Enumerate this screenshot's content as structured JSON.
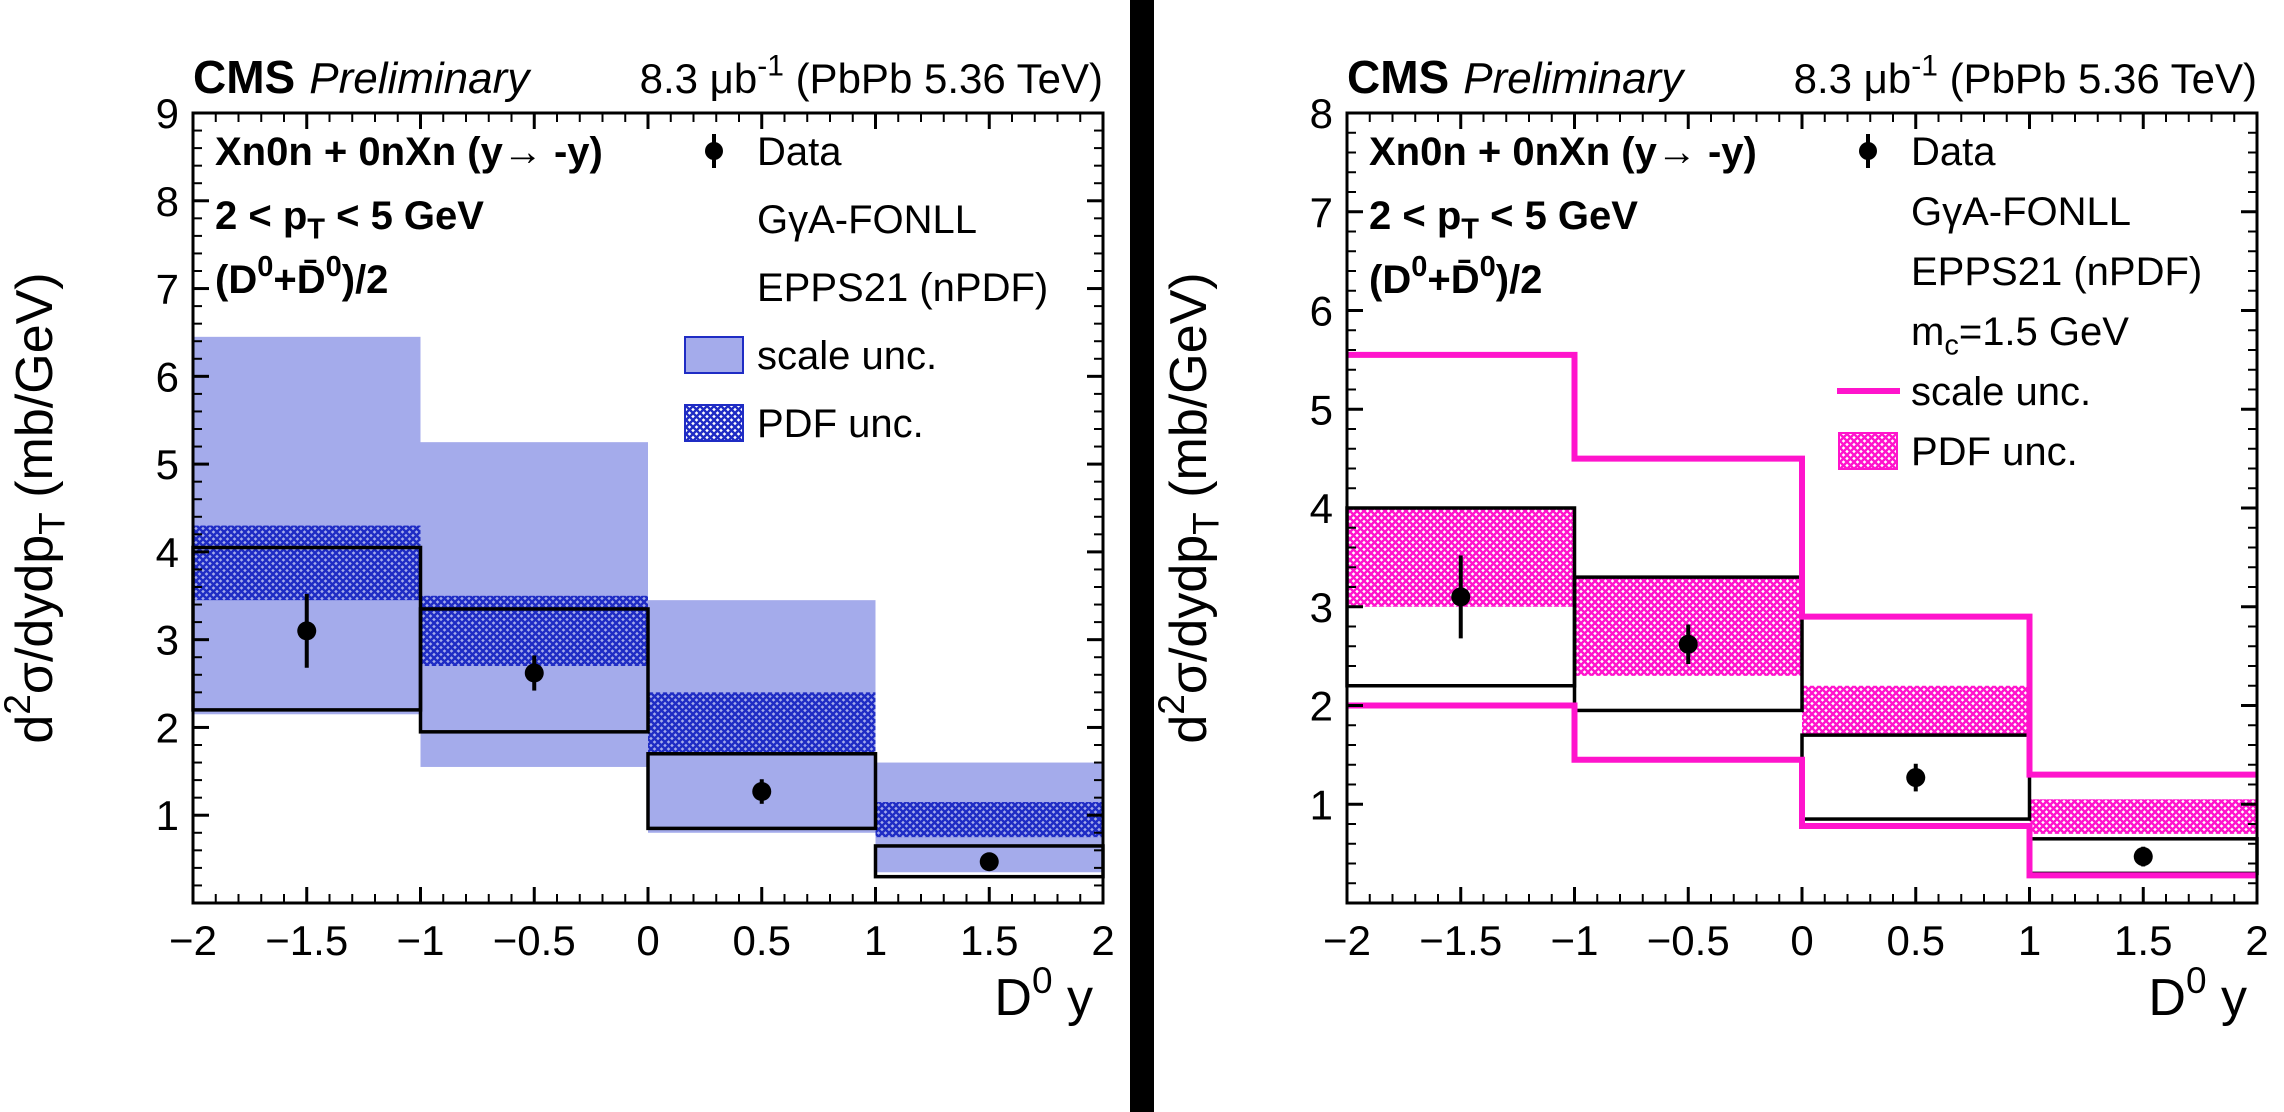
{
  "figure": {
    "background": "#ffffff",
    "separator_color": "#000000"
  },
  "chart_data": [
    {
      "type": "bar",
      "variant": "hep-cross-section-uncertainty-bands",
      "header": {
        "experiment": "CMS",
        "status": "Preliminary",
        "lumi": "8.3 μb^{-1} (PbPb 5.36 TeV)"
      },
      "annotations": [
        "Xn0n + 0nXn (y→ -y)",
        "2 < p_{T} < 5 GeV",
        "(D^{0}+D̄^{0})/2"
      ],
      "xlabel": "D^{0} y",
      "ylabel": "d^{2}σ/dydp_{T} (mb/GeV)",
      "xlim": [
        -2,
        2
      ],
      "ylim": [
        0,
        9
      ],
      "xticks": [
        -2,
        -1.5,
        -1,
        -0.5,
        0,
        0.5,
        1,
        1.5,
        2
      ],
      "yticks": [
        1,
        2,
        3,
        4,
        5,
        6,
        7,
        8,
        9
      ],
      "bin_edges": [
        -2,
        -1,
        0,
        1,
        2
      ],
      "series": [
        {
          "name": "scale unc.",
          "style": "band_fill",
          "color": "#a4abeb",
          "bins": [
            [
              2.15,
              6.45
            ],
            [
              1.55,
              5.25
            ],
            [
              0.8,
              3.45
            ],
            [
              0.35,
              1.6
            ]
          ]
        },
        {
          "name": "PDF unc.",
          "style": "band_hatch",
          "color": "#1f2cc4",
          "bins": [
            [
              3.45,
              4.3
            ],
            [
              2.7,
              3.5
            ],
            [
              1.7,
              2.4
            ],
            [
              0.75,
              1.15
            ]
          ]
        },
        {
          "name": "GγA-FONLL central",
          "style": "box_outline",
          "color": "#000000",
          "bins": [
            [
              2.2,
              4.05
            ],
            [
              1.95,
              3.35
            ],
            [
              0.85,
              1.7
            ],
            [
              0.3,
              0.65
            ]
          ]
        },
        {
          "name": "Data",
          "style": "points",
          "color": "#000000",
          "x": [
            -1.5,
            -0.5,
            0.5,
            1.5
          ],
          "y": [
            3.1,
            2.62,
            1.27,
            0.47
          ],
          "yerr": [
            0.42,
            0.2,
            0.14,
            0.1
          ]
        }
      ],
      "legend": [
        {
          "label": "Data",
          "marker": "point"
        },
        {
          "label": "GγA-FONLL",
          "marker": "none"
        },
        {
          "label": "EPPS21 (nPDF)",
          "marker": "none"
        },
        {
          "label": "scale unc.",
          "marker": "fill",
          "color": "#a4abeb",
          "border": "#1f2cc4"
        },
        {
          "label": "PDF unc.",
          "marker": "hatch",
          "color": "#1f2cc4"
        }
      ]
    },
    {
      "type": "bar",
      "variant": "hep-cross-section-uncertainty-bands",
      "header": {
        "experiment": "CMS",
        "status": "Preliminary",
        "lumi": "8.3 μb^{-1} (PbPb 5.36 TeV)"
      },
      "annotations": [
        "Xn0n + 0nXn (y→ -y)",
        "2 < p_{T} < 5 GeV",
        "(D^{0}+D̄^{0})/2"
      ],
      "xlabel": "D^{0} y",
      "ylabel": "d^{2}σ/dydp_{T} (mb/GeV)",
      "xlim": [
        -2,
        2
      ],
      "ylim": [
        0,
        8
      ],
      "xticks": [
        -2,
        -1.5,
        -1,
        -0.5,
        0,
        0.5,
        1,
        1.5,
        2
      ],
      "yticks": [
        1,
        2,
        3,
        4,
        5,
        6,
        7,
        8
      ],
      "bin_edges": [
        -2,
        -1,
        0,
        1,
        2
      ],
      "series": [
        {
          "name": "PDF unc.",
          "style": "band_hatch",
          "color": "#ff14cc",
          "bins": [
            [
              3.0,
              4.0
            ],
            [
              2.3,
              3.3
            ],
            [
              1.7,
              2.2
            ],
            [
              0.7,
              1.05
            ]
          ]
        },
        {
          "name": "GγA-FONLL central",
          "style": "box_outline",
          "color": "#000000",
          "bins": [
            [
              2.2,
              4.0
            ],
            [
              1.95,
              3.3
            ],
            [
              0.85,
              1.7
            ],
            [
              0.3,
              0.65
            ]
          ]
        },
        {
          "name": "scale unc.",
          "style": "band_outline",
          "color": "#ff14cc",
          "bins": [
            [
              2.0,
              5.55
            ],
            [
              1.45,
              4.5
            ],
            [
              0.78,
              2.9
            ],
            [
              0.28,
              1.3
            ]
          ]
        },
        {
          "name": "Data",
          "style": "points",
          "color": "#000000",
          "x": [
            -1.5,
            -0.5,
            0.5,
            1.5
          ],
          "y": [
            3.1,
            2.62,
            1.27,
            0.47
          ],
          "yerr": [
            0.42,
            0.2,
            0.14,
            0.1
          ]
        }
      ],
      "legend": [
        {
          "label": "Data",
          "marker": "point"
        },
        {
          "label": "GγA-FONLL",
          "marker": "none"
        },
        {
          "label": "EPPS21 (nPDF)",
          "marker": "none"
        },
        {
          "label": "m_{c}=1.5 GeV",
          "marker": "none"
        },
        {
          "label": "scale unc.",
          "marker": "line",
          "color": "#ff14cc"
        },
        {
          "label": "PDF unc.",
          "marker": "hatch",
          "color": "#ff14cc"
        }
      ]
    }
  ]
}
